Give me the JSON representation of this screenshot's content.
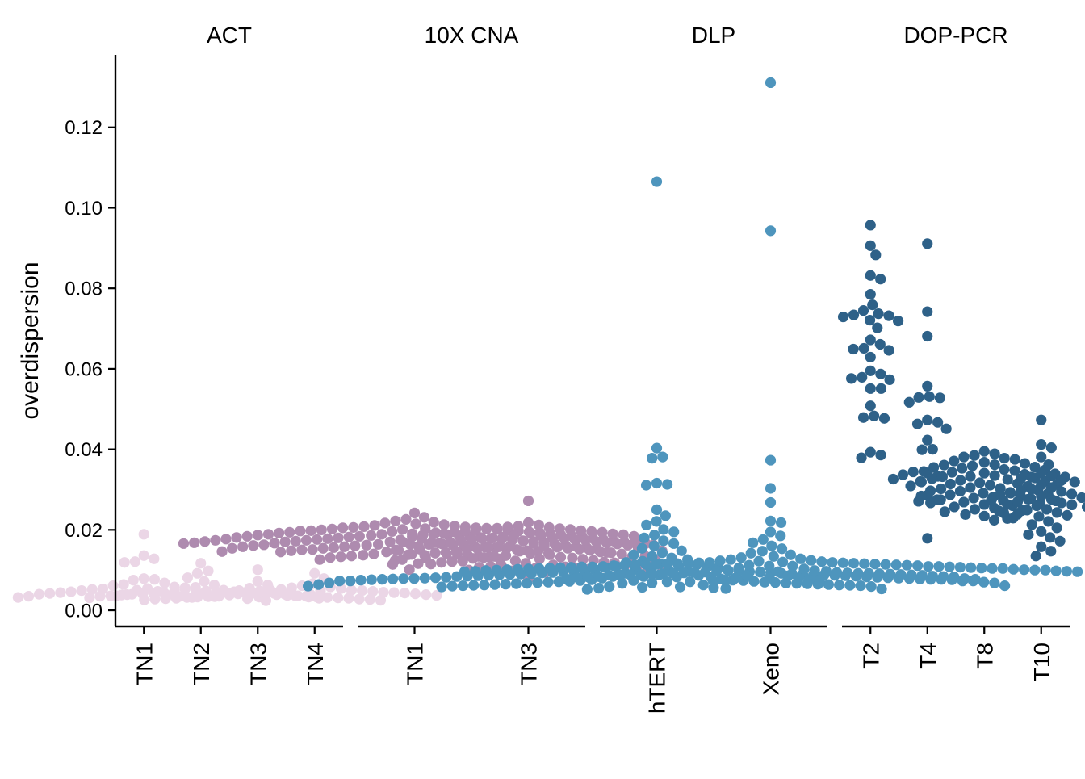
{
  "chart_data": {
    "type": "scatter",
    "subtype": "beeswarm",
    "ylabel": "overdispersion",
    "xlabel": "",
    "ylim": [
      -0.004,
      0.138
    ],
    "y_ticks": [
      "0.00",
      "0.02",
      "0.04",
      "0.06",
      "0.08",
      "0.10",
      "0.12"
    ],
    "y_tick_values": [
      0.0,
      0.02,
      0.04,
      0.06,
      0.08,
      0.1,
      0.12
    ],
    "grid": false,
    "legend": "none",
    "facets": [
      {
        "title": "ACT",
        "color": "#EBD6E6",
        "groups": [
          {
            "label": "TN1",
            "values": [
              0.0189,
              0.0136,
              0.0128,
              0.0121,
              0.0119,
              0.0079,
              0.0077,
              0.0075,
              0.0068,
              0.0064,
              0.0061,
              0.0058,
              0.0056,
              0.0054,
              0.0053,
              0.0052,
              0.0051,
              0.005,
              0.0049,
              0.0048,
              0.0047,
              0.0046,
              0.0045,
              0.0044,
              0.0043,
              0.0042,
              0.0041,
              0.004,
              0.0039,
              0.0038,
              0.0037,
              0.0036,
              0.0035,
              0.0034,
              0.0033,
              0.0032
            ]
          },
          {
            "label": "TN2",
            "values": [
              0.0117,
              0.0098,
              0.0092,
              0.0081,
              0.0072,
              0.0063,
              0.0057,
              0.0053,
              0.005,
              0.0048,
              0.0046,
              0.0045,
              0.0044,
              0.0043,
              0.0042,
              0.0041,
              0.004,
              0.0039,
              0.0038,
              0.0037,
              0.0036,
              0.0035,
              0.0034,
              0.0033,
              0.0032,
              0.0031,
              0.003,
              0.0036,
              0.0041,
              0.0044
            ]
          },
          {
            "label": "TN3",
            "values": [
              0.0101,
              0.0072,
              0.0063,
              0.0055,
              0.0049,
              0.0045,
              0.0042,
              0.004,
              0.0038,
              0.0036,
              0.0035,
              0.0034,
              0.0033,
              0.0032,
              0.0031,
              0.003,
              0.0029,
              0.0028,
              0.0027,
              0.0026,
              0.0025,
              0.0024,
              0.0033,
              0.0035,
              0.003,
              0.0028,
              0.0032,
              0.0029
            ]
          },
          {
            "label": "TN4",
            "values": [
              0.0092,
              0.0079,
              0.0066,
              0.0061,
              0.0058,
              0.0056,
              0.0054,
              0.0052,
              0.005,
              0.0049,
              0.0048,
              0.0047,
              0.0046,
              0.0045,
              0.0044,
              0.0043,
              0.0042,
              0.0041,
              0.004,
              0.0039,
              0.0038,
              0.0037,
              0.0036,
              0.0045,
              0.0048,
              0.005,
              0.0043,
              0.0041
            ]
          }
        ]
      },
      {
        "title": "10X CNA",
        "color": "#AE8BAF",
        "groups": [
          {
            "label": "TN1",
            "values": [
              0.0242,
              0.0231,
              0.0226,
              0.0222,
              0.0219,
              0.0217,
              0.0215,
              0.0213,
              0.0211,
              0.0209,
              0.0208,
              0.0207,
              0.0206,
              0.0205,
              0.0204,
              0.0203,
              0.0202,
              0.0201,
              0.02,
              0.0199,
              0.0198,
              0.0197,
              0.0196,
              0.0195,
              0.0194,
              0.0193,
              0.0192,
              0.0191,
              0.019,
              0.0189,
              0.0188,
              0.0187,
              0.0186,
              0.0185,
              0.0184,
              0.0183,
              0.0182,
              0.0181,
              0.018,
              0.0179,
              0.0178,
              0.0177,
              0.0176,
              0.0175,
              0.0174,
              0.0173,
              0.0172,
              0.0171,
              0.017,
              0.0169,
              0.0168,
              0.0167,
              0.0166,
              0.0165,
              0.0164,
              0.0163,
              0.0162,
              0.0161,
              0.016,
              0.0159,
              0.0158,
              0.0157,
              0.0156,
              0.0155,
              0.0154,
              0.0153,
              0.0152,
              0.0151,
              0.015,
              0.0149,
              0.0148,
              0.0147,
              0.0146,
              0.0145,
              0.0144,
              0.0143,
              0.0142,
              0.0141,
              0.014,
              0.0139,
              0.0138,
              0.0137,
              0.0136,
              0.0135,
              0.0134,
              0.0133,
              0.0132,
              0.0131,
              0.013,
              0.0128,
              0.0126,
              0.0124,
              0.0185,
              0.0181,
              0.0179,
              0.0176,
              0.0172,
              0.0168,
              0.0165,
              0.0161,
              0.0187,
              0.0183,
              0.0174,
              0.017,
              0.0166,
              0.0162,
              0.0178,
              0.0175,
              0.0171,
              0.0164,
              0.0159,
              0.0156,
              0.0153,
              0.0189,
              0.0193,
              0.0197,
              0.0201,
              0.0205,
              0.0184,
              0.0177,
              0.0169,
              0.0167,
              0.0163,
              0.0158,
              0.0154,
              0.0151,
              0.0148,
              0.0145
            ]
          },
          {
            "label": "TN3",
            "values": [
              0.0272,
              0.0218,
              0.0212,
              0.0209,
              0.0206,
              0.0204,
              0.0202,
              0.02,
              0.0198,
              0.0196,
              0.0194,
              0.0192,
              0.019,
              0.0188,
              0.0186,
              0.0184,
              0.0182,
              0.018,
              0.0178,
              0.0176,
              0.0174,
              0.0172,
              0.017,
              0.0168,
              0.0166,
              0.0164,
              0.0162,
              0.016,
              0.0158,
              0.0156,
              0.0154,
              0.0152,
              0.015,
              0.0148,
              0.0146,
              0.0144,
              0.0142,
              0.014,
              0.0138,
              0.0136,
              0.0134,
              0.0132,
              0.013,
              0.0128,
              0.0126,
              0.0124,
              0.0122,
              0.012,
              0.0118,
              0.0116,
              0.0114,
              0.0112,
              0.011,
              0.0108,
              0.0106,
              0.0104,
              0.0102,
              0.01,
              0.0098,
              0.0094,
              0.0079,
              0.0207,
              0.0201,
              0.0195,
              0.0189,
              0.0183,
              0.0177,
              0.0171,
              0.0165,
              0.0159,
              0.0153,
              0.0147,
              0.0141,
              0.0135,
              0.0129,
              0.0123,
              0.0117,
              0.0111,
              0.0105,
              0.0203,
              0.0197,
              0.0191,
              0.0185,
              0.0179,
              0.0173,
              0.0167,
              0.0161,
              0.0155,
              0.0149,
              0.0143,
              0.0137,
              0.0131,
              0.0125,
              0.0119,
              0.0113,
              0.0107,
              0.0101,
              0.0187,
              0.0181,
              0.0175,
              0.0169,
              0.0163,
              0.0157,
              0.0151,
              0.0145,
              0.0139,
              0.0133,
              0.0127,
              0.0121,
              0.0115,
              0.0109,
              0.0103
            ]
          }
        ]
      },
      {
        "title": "DLP",
        "color": "#4E95BD",
        "groups": [
          {
            "label": "hTERT",
            "values": [
              0.1065,
              0.0403,
              0.0381,
              0.0378,
              0.0316,
              0.0313,
              0.0311,
              0.025,
              0.0235,
              0.0221,
              0.0212,
              0.0201,
              0.0195,
              0.0187,
              0.018,
              0.0173,
              0.0166,
              0.016,
              0.0154,
              0.0148,
              0.0143,
              0.0138,
              0.0134,
              0.013,
              0.0126,
              0.0122,
              0.0119,
              0.0116,
              0.0113,
              0.011,
              0.0108,
              0.0106,
              0.0104,
              0.0102,
              0.01,
              0.0098,
              0.0097,
              0.0096,
              0.0095,
              0.0094,
              0.0093,
              0.0092,
              0.0091,
              0.009,
              0.0089,
              0.0088,
              0.0087,
              0.0086,
              0.0085,
              0.0084,
              0.0083,
              0.0082,
              0.0081,
              0.008,
              0.0079,
              0.0078,
              0.0077,
              0.0076,
              0.0075,
              0.0074,
              0.0073,
              0.0072,
              0.0071,
              0.007,
              0.0069,
              0.0068,
              0.0067,
              0.0066,
              0.0065,
              0.0064,
              0.0063,
              0.0062,
              0.0061,
              0.006,
              0.0059,
              0.0058,
              0.0057,
              0.0056,
              0.0055,
              0.0054,
              0.0053,
              0.0052,
              0.0095,
              0.009,
              0.0086,
              0.0082,
              0.0079,
              0.0076,
              0.0073,
              0.007,
              0.0067,
              0.0064,
              0.0061,
              0.0058,
              0.0092,
              0.0088,
              0.0084,
              0.008,
              0.0077,
              0.0074,
              0.0071,
              0.0068,
              0.0065,
              0.0062,
              0.0059,
              0.0089,
              0.0085,
              0.0081,
              0.0078,
              0.0075,
              0.0072,
              0.0069,
              0.0066,
              0.0063,
              0.006,
              0.0087,
              0.0083,
              0.0079,
              0.0076,
              0.0073,
              0.007,
              0.0067,
              0.0064,
              0.0061,
              0.0098,
              0.0101,
              0.0096,
              0.0091,
              0.0087,
              0.0084,
              0.008,
              0.0077,
              0.0074,
              0.0071,
              0.0068,
              0.0109,
              0.0105,
              0.0099,
              0.0093,
              0.0088,
              0.0083,
              0.0078,
              0.0073,
              0.0068,
              0.0063
            ]
          },
          {
            "label": "Xeno",
            "values": [
              0.1311,
              0.0943,
              0.0373,
              0.0303,
              0.0268,
              0.0222,
              0.0218,
              0.0195,
              0.0185,
              0.0176,
              0.0168,
              0.016,
              0.0153,
              0.0147,
              0.0142,
              0.0138,
              0.0134,
              0.0131,
              0.0128,
              0.0126,
              0.0124,
              0.0122,
              0.012,
              0.0118,
              0.0117,
              0.0116,
              0.0115,
              0.0114,
              0.0113,
              0.0112,
              0.0111,
              0.011,
              0.0109,
              0.0108,
              0.0107,
              0.0106,
              0.0105,
              0.0104,
              0.0103,
              0.0102,
              0.0101,
              0.01,
              0.0099,
              0.0098,
              0.0097,
              0.0096,
              0.0095,
              0.0094,
              0.0093,
              0.0092,
              0.0091,
              0.009,
              0.0089,
              0.0088,
              0.0087,
              0.0086,
              0.0085,
              0.0084,
              0.0083,
              0.0082,
              0.0081,
              0.008,
              0.0079,
              0.0078,
              0.0077,
              0.0076,
              0.0075,
              0.0074,
              0.0073,
              0.0119,
              0.0116,
              0.0113,
              0.011,
              0.0107,
              0.0104,
              0.0101,
              0.0098,
              0.0095,
              0.0092,
              0.0089,
              0.0086,
              0.0083,
              0.008,
              0.0121,
              0.0117,
              0.0114,
              0.0111,
              0.0108,
              0.0105,
              0.0102,
              0.0099,
              0.0096,
              0.0093,
              0.009,
              0.0087,
              0.0084,
              0.0115,
              0.0112,
              0.0109,
              0.0106,
              0.0103,
              0.01,
              0.0097,
              0.0094,
              0.0091,
              0.0088,
              0.0118,
              0.0112,
              0.0108,
              0.0104,
              0.01,
              0.0096,
              0.0092,
              0.0088,
              0.0123,
              0.0119,
              0.0114,
              0.0109,
              0.0105,
              0.0101,
              0.0097
            ]
          }
        ]
      },
      {
        "title": "DOP-PCR",
        "color": "#2E6188",
        "groups": [
          {
            "label": "T2",
            "values": [
              0.0957,
              0.0906,
              0.0883,
              0.0832,
              0.0823,
              0.0785,
              0.0759,
              0.0745,
              0.0737,
              0.0734,
              0.0732,
              0.0729,
              0.0721,
              0.0719,
              0.0702,
              0.0672,
              0.0661,
              0.0651,
              0.0649,
              0.0646,
              0.0629,
              0.0595,
              0.0587,
              0.0579,
              0.0576,
              0.0573,
              0.0551,
              0.0551,
              0.0508,
              0.0483,
              0.0479,
              0.0477,
              0.0393,
              0.0386,
              0.0379
            ]
          },
          {
            "label": "T4",
            "values": [
              0.0911,
              0.0742,
              0.0681,
              0.0557,
              0.0531,
              0.0528,
              0.0529,
              0.0517,
              0.0473,
              0.0467,
              0.0463,
              0.0451,
              0.0423,
              0.04,
              0.0399,
              0.0341,
              0.0333,
              0.0319,
              0.0286,
              0.0275,
              0.0271,
              0.0179
            ]
          },
          {
            "label": "T8",
            "values": [
              0.0395,
              0.0389,
              0.0385,
              0.0381,
              0.0378,
              0.0375,
              0.0371,
              0.0368,
              0.0365,
              0.0362,
              0.0359,
              0.0356,
              0.0353,
              0.035,
              0.0347,
              0.0344,
              0.0341,
              0.0338,
              0.0335,
              0.0332,
              0.0329,
              0.0326,
              0.0323,
              0.032,
              0.0317,
              0.0314,
              0.0311,
              0.0308,
              0.0305,
              0.0302,
              0.0299,
              0.0296,
              0.0293,
              0.029,
              0.0287,
              0.0284,
              0.0281,
              0.0278,
              0.0275,
              0.0272,
              0.0269,
              0.0266,
              0.0263,
              0.026,
              0.0257,
              0.0254,
              0.0251,
              0.0248,
              0.0245,
              0.0242,
              0.0238,
              0.0234,
              0.0229,
              0.0224,
              0.0345,
              0.0339,
              0.0333,
              0.0327,
              0.0321,
              0.0315,
              0.0309,
              0.0303,
              0.0297,
              0.0291,
              0.0285,
              0.0279,
              0.0273,
              0.0267,
              0.0361,
              0.0355,
              0.0349,
              0.0343,
              0.0337,
              0.0331,
              0.0325,
              0.0319,
              0.0313
            ]
          },
          {
            "label": "T10",
            "values": [
              0.0473,
              0.0412,
              0.0404,
              0.0381,
              0.0362,
              0.0341,
              0.0334,
              0.0331,
              0.0327,
              0.0322,
              0.0312,
              0.0305,
              0.0301,
              0.0298,
              0.0295,
              0.0291,
              0.0288,
              0.0284,
              0.028,
              0.0276,
              0.0273,
              0.027,
              0.0267,
              0.0263,
              0.026,
              0.0257,
              0.0254,
              0.0251,
              0.0247,
              0.0243,
              0.0238,
              0.0233,
              0.0228,
              0.0221,
              0.0213,
              0.0205,
              0.0196,
              0.0188,
              0.0181,
              0.0172,
              0.0158,
              0.0147,
              0.0135,
              0.0289,
              0.0276,
              0.0262,
              0.0249,
              0.0236
            ]
          }
        ]
      }
    ]
  }
}
